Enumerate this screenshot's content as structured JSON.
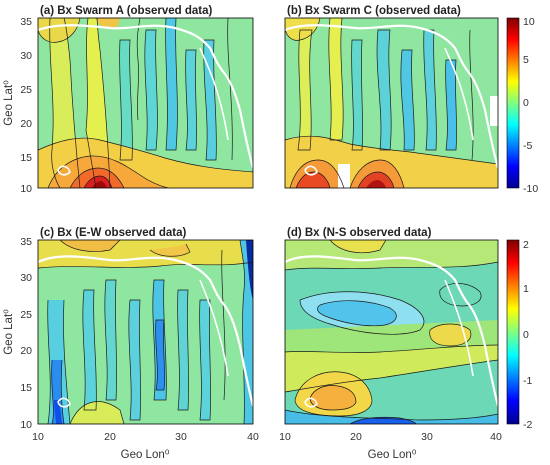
{
  "chart_data": [
    {
      "type": "contour",
      "title": "(a) Bx Swarm A (observed data)",
      "xlabel": "",
      "ylabel": "Geo Lat⁰",
      "xlim": [
        10,
        40
      ],
      "ylim": [
        10,
        35
      ],
      "xticks": [
        "10",
        "20",
        "30",
        "40"
      ],
      "yticks": [
        "10",
        "15",
        "20",
        "25",
        "30",
        "35"
      ],
      "colorbar": null,
      "feature": "hot spot (~15, ~18) to ~6; cool vertical bands near lon 25-34"
    },
    {
      "type": "contour",
      "title": "(b) Bx Swarm C (observed data)",
      "xlabel": "",
      "ylabel": "",
      "xlim": [
        10,
        40
      ],
      "ylim": [
        10,
        35
      ],
      "xticks": [
        "10",
        "20",
        "30",
        "40"
      ],
      "yticks": [
        "10",
        "15",
        "20",
        "25",
        "30",
        "35"
      ],
      "colorbar": {
        "min": -10,
        "max": 10,
        "ticks": [
          "10",
          "5",
          "0",
          "-5",
          "-10"
        ]
      },
      "feature": "hot bands lower-left and around lon 23; missing data patches"
    },
    {
      "type": "contour",
      "title": "(c) Bx (E-W observed data)",
      "xlabel": "Geo Lon⁰",
      "ylabel": "Geo Lat⁰",
      "xlim": [
        10,
        40
      ],
      "ylim": [
        10,
        35
      ],
      "xticks": [
        "10",
        "20",
        "30",
        "40"
      ],
      "yticks": [
        "10",
        "15",
        "20",
        "25",
        "30",
        "35"
      ],
      "colorbar": null,
      "feature": "cool vertical bands at lon ~14, ~18, ~28; warm band at top"
    },
    {
      "type": "contour",
      "title": "(d) Bx (N-S observed data)",
      "xlabel": "Geo Lon⁰",
      "ylabel": "",
      "xlim": [
        10,
        40
      ],
      "ylim": [
        10,
        35
      ],
      "xticks": [
        "10",
        "20",
        "30",
        "40"
      ],
      "yticks": [
        "10",
        "15",
        "20",
        "25",
        "30",
        "35"
      ],
      "colorbar": {
        "min": -2,
        "max": 2,
        "ticks": [
          "2",
          "1",
          "0",
          "-1",
          "-2"
        ]
      },
      "feature": "warm band at lat ~15, cool band at lat ~11, cool blob at lat ~26"
    }
  ]
}
